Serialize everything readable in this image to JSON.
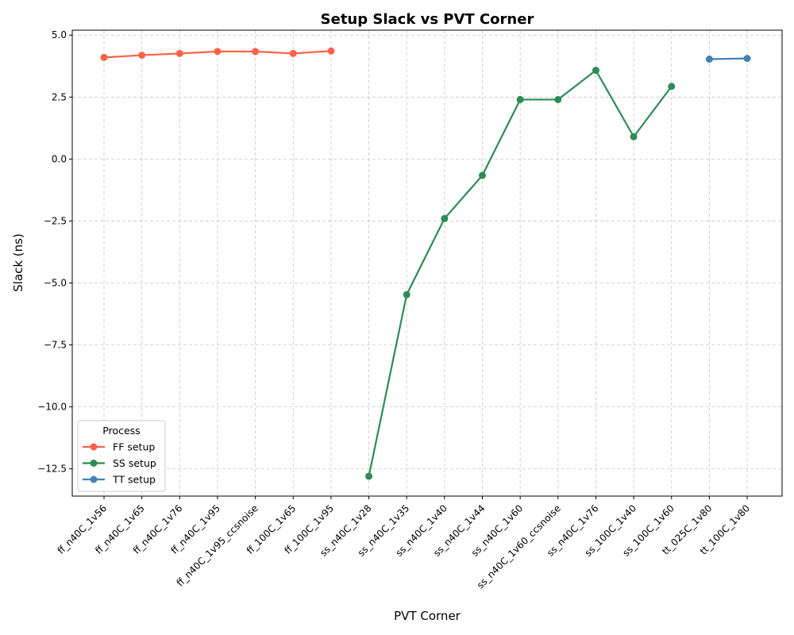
{
  "chart_data": {
    "type": "line",
    "title": "Setup Slack vs PVT Corner",
    "xlabel": "PVT Corner",
    "ylabel": "Slack (ns)",
    "categories": [
      "ff_n40C_1v56",
      "ff_n40C_1v65",
      "ff_n40C_1v76",
      "ff_n40C_1v95",
      "ff_n40C_1v95_ccsnoise",
      "ff_100C_1v65",
      "ff_100C_1v95",
      "ss_n40C_1v28",
      "ss_n40C_1v35",
      "ss_n40C_1v40",
      "ss_n40C_1v44",
      "ss_n40C_1v60",
      "ss_n40C_1v60_ccsnoise",
      "ss_n40C_1v76",
      "ss_100C_1v40",
      "ss_100C_1v60",
      "tt_025C_1v80",
      "tt_100C_1v80"
    ],
    "yticks": [
      5.0,
      2.5,
      0.0,
      -2.5,
      -5.0,
      -7.5,
      -10.0,
      -12.5
    ],
    "ylim": [
      -13.6,
      5.2
    ],
    "grid": true,
    "legend": {
      "title": "Process",
      "placement": "lower-left"
    },
    "series": [
      {
        "name": "FF setup",
        "color": "#ff6347",
        "x": [
          "ff_n40C_1v56",
          "ff_n40C_1v65",
          "ff_n40C_1v76",
          "ff_n40C_1v95",
          "ff_n40C_1v95_ccsnoise",
          "ff_100C_1v65",
          "ff_100C_1v95"
        ],
        "values": [
          4.1,
          4.19,
          4.26,
          4.34,
          4.34,
          4.26,
          4.36
        ]
      },
      {
        "name": "SS setup",
        "color": "#2e8b57",
        "x": [
          "ss_n40C_1v28",
          "ss_n40C_1v35",
          "ss_n40C_1v40",
          "ss_n40C_1v44",
          "ss_n40C_1v60",
          "ss_n40C_1v60_ccsnoise",
          "ss_n40C_1v76",
          "ss_100C_1v40",
          "ss_100C_1v60"
        ],
        "values": [
          -12.8,
          -5.47,
          -2.4,
          -0.66,
          2.4,
          2.4,
          3.58,
          0.9,
          2.93
        ]
      },
      {
        "name": "TT setup",
        "color": "#4682b4",
        "x": [
          "tt_025C_1v80",
          "tt_100C_1v80"
        ],
        "values": [
          4.03,
          4.06
        ]
      }
    ]
  }
}
